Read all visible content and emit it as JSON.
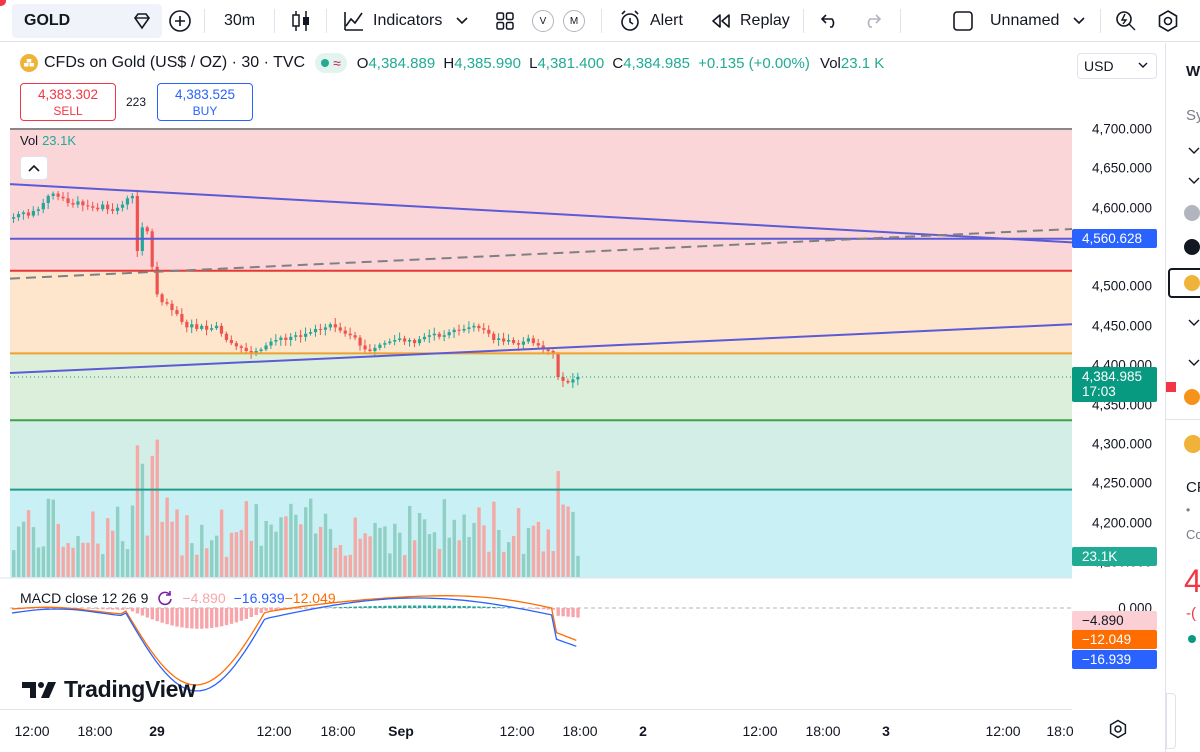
{
  "toolbar": {
    "symbol": "GOLD",
    "interval": "30m",
    "indicators_label": "Indicators",
    "alert_label": "Alert",
    "replay_label": "Replay",
    "layout_name": "Unnamed",
    "v_badge": "V",
    "m_badge": "M"
  },
  "legend": {
    "title": "CFDs on Gold (US$ / OZ) · 30 · TVC",
    "o_label": "O",
    "o": "4,384.889",
    "h_label": "H",
    "h": "4,385.990",
    "l_label": "L",
    "l": "4,381.400",
    "c_label": "C",
    "c": "4,384.985",
    "change": "+0.135 (+0.00%)",
    "vol_label": "Vol",
    "vol": "23.1 K"
  },
  "trade": {
    "sell_price": "4,383.302",
    "sell_label": "SELL",
    "spread": "223",
    "buy_price": "4,383.525",
    "buy_label": "BUY"
  },
  "volume_pane": {
    "label": "Vol",
    "value": "23.1K"
  },
  "macd": {
    "label": "MACD close 12 26 9",
    "hist": "−4.890",
    "macd": "−16.939",
    "signal": "−12.049"
  },
  "brand": "TradingView",
  "currency": "USD",
  "price_scale": {
    "ticks": [
      "4,700.000",
      "4,650.000",
      "4,600.000",
      "4,500.000",
      "4,450.000",
      "4,400.000",
      "4,350.000",
      "4,300.000",
      "4,250.000",
      "4,200.000",
      "4,150.000"
    ],
    "tick_values": [
      4700,
      4650,
      4600,
      4500,
      4450,
      4400,
      4350,
      4300,
      4250,
      4200,
      4150
    ],
    "line_label": "4,560.628",
    "last_price": "4,384.985",
    "countdown": "17:03",
    "volume_label": "23.1K",
    "macd_zero": "0.000",
    "macd_hist_label": "−4.890",
    "macd_signal_label": "−12.049",
    "macd_line_label": "−16.939"
  },
  "time_scale": {
    "ticks": [
      "12:00",
      "18:00",
      "29",
      "12:00",
      "18:00",
      "Sep",
      "12:00",
      "18:00",
      "2",
      "12:00",
      "18:00",
      "3",
      "12:00",
      "18:0"
    ]
  },
  "colors": {
    "up": "#26a69a",
    "down": "#ef5350",
    "trendline": "#5b5bd6",
    "red_line": "#e53935",
    "orange_line": "#f0a030",
    "green_line": "#43a047",
    "teal_line": "#1e9e8a",
    "last_price_bg": "#089981",
    "line_label_bg": "#2962ff"
  },
  "chart_data": {
    "type": "candlestick",
    "series_name": "CFDs on Gold (US$ / OZ)",
    "y_axis_range": [
      4150,
      4700
    ],
    "zones": [
      {
        "from": 4700,
        "to": 4520,
        "color": "red"
      },
      {
        "from": 4520,
        "to": 4415,
        "color": "orange"
      },
      {
        "from": 4415,
        "to": 4330,
        "color": "light-green"
      },
      {
        "from": 4330,
        "to": 4242,
        "color": "green"
      },
      {
        "from": 4242,
        "to": 4130,
        "color": "cyan"
      }
    ],
    "horizontal_levels": [
      4700,
      4560.628,
      4520,
      4415,
      4330,
      4242
    ],
    "last_close": 4384.985,
    "candles_close_approx": [
      4588,
      4592,
      4594,
      4590,
      4596,
      4598,
      4606,
      4615,
      4618,
      4614,
      4612,
      4606,
      4604,
      4608,
      4603,
      4602,
      4600,
      4598,
      4604,
      4598,
      4596,
      4600,
      4604,
      4612,
      4615,
      4545,
      4575,
      4570,
      4525,
      4490,
      4480,
      4478,
      4470,
      4465,
      4455,
      4448,
      4452,
      4446,
      4450,
      4445,
      4447,
      4450,
      4440,
      4432,
      4428,
      4424,
      4422,
      4418,
      4414,
      4418,
      4420,
      4425,
      4430,
      4432,
      4435,
      4432,
      4436,
      4438,
      4436,
      4440,
      4442,
      4446,
      4445,
      4448,
      4452,
      4448,
      4444,
      4440,
      4438,
      4435,
      4425,
      4420,
      4418,
      4422,
      4426,
      4428,
      4430,
      4432,
      4434,
      4430,
      4432,
      4428,
      4433,
      4436,
      4438,
      4440,
      4436,
      4438,
      4442,
      4445,
      4444,
      4446,
      4448,
      4450,
      4447,
      4445,
      4440,
      4432,
      4434,
      4430,
      4432,
      4428,
      4426,
      4430,
      4434,
      4428,
      4425,
      4420,
      4418,
      4414,
      4385,
      4380,
      4378,
      4382,
      4384.985
    ]
  }
}
